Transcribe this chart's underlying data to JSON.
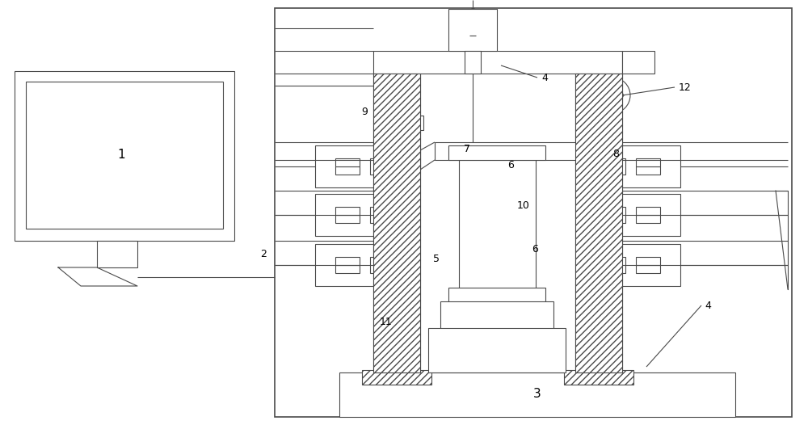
{
  "bg_color": "#ffffff",
  "lc": "#4a4a4a",
  "lw": 0.8,
  "tlw": 1.2,
  "fig_w": 10.0,
  "fig_h": 5.26,
  "dpi": 100
}
